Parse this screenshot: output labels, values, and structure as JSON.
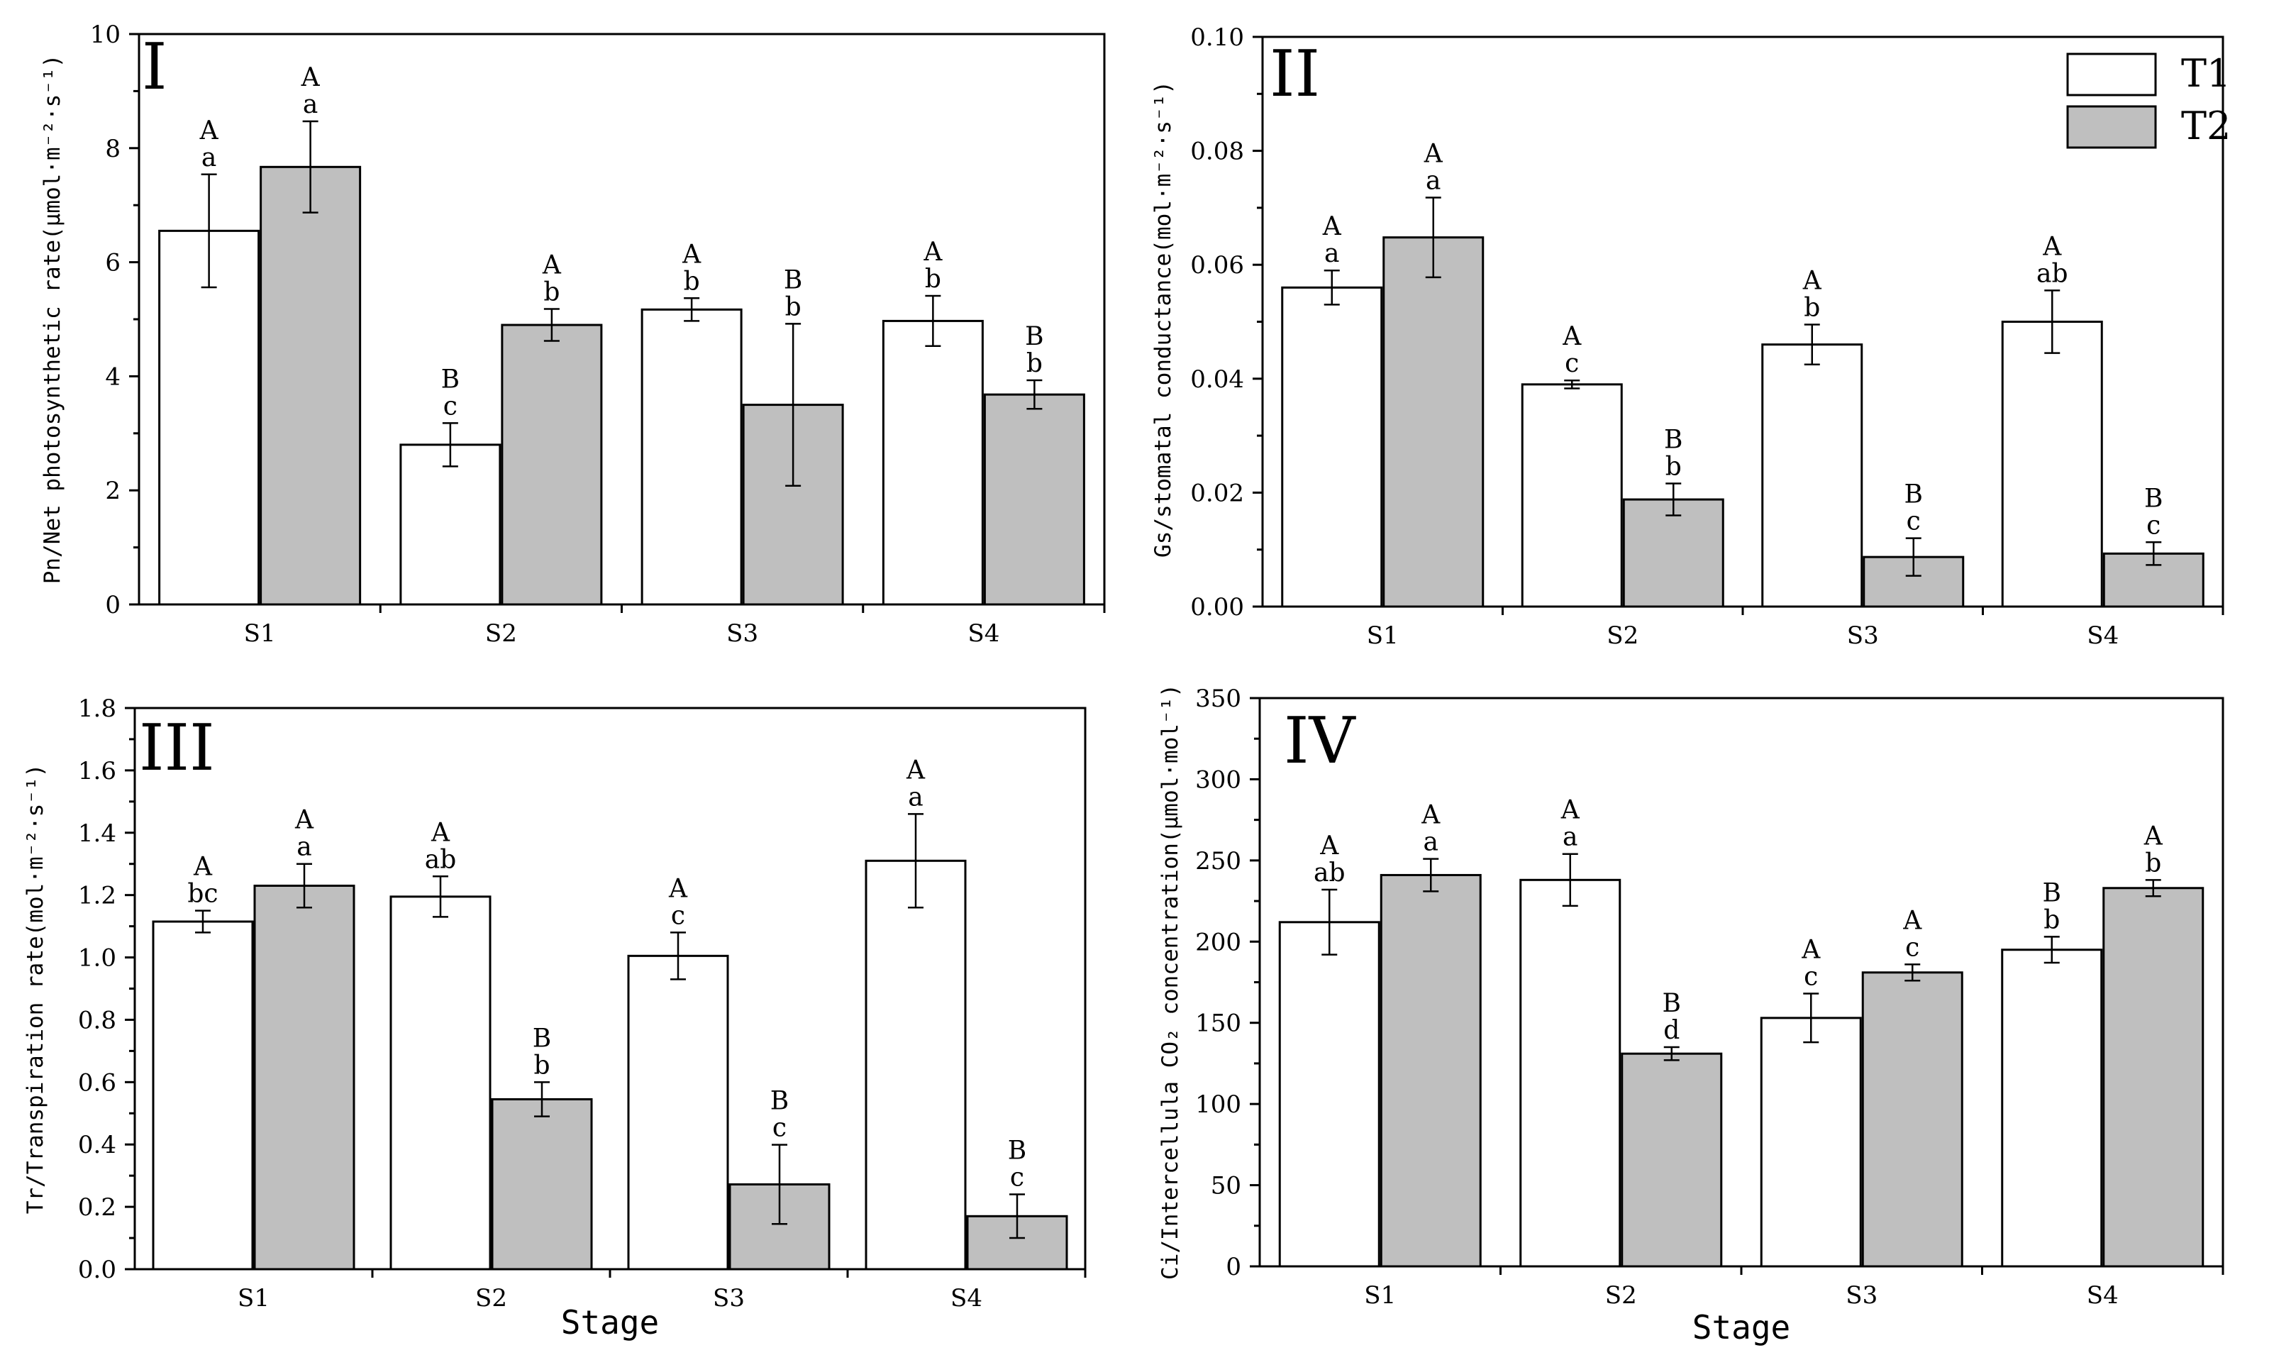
{
  "colors": {
    "T1": "#ffffff",
    "T2": "#bfbfbf",
    "axis": "#000000"
  },
  "legend": {
    "entries": [
      "T1",
      "T2"
    ]
  },
  "chart_data": [
    {
      "type": "bar",
      "panel": "I",
      "categories": [
        "S1",
        "S2",
        "S3",
        "S4"
      ],
      "series": [
        {
          "name": "T1",
          "values": [
            6.55,
            2.8,
            5.17,
            4.97
          ],
          "errors": [
            0.99,
            0.38,
            0.2,
            0.44
          ],
          "upper": [
            "A",
            "B",
            "A",
            "A"
          ],
          "lower": [
            "a",
            "c",
            "b",
            "b"
          ]
        },
        {
          "name": "T2",
          "values": [
            7.67,
            4.9,
            3.5,
            3.68
          ],
          "errors": [
            0.8,
            0.28,
            1.42,
            0.25
          ],
          "upper": [
            "A",
            "A",
            "B",
            "B"
          ],
          "lower": [
            "a",
            "b",
            "b",
            "b"
          ]
        }
      ],
      "xlabel": "",
      "ylabel": "Pn/Net photosynthetic rate(μmol·m⁻²·s⁻¹)",
      "ylim": [
        0,
        10
      ],
      "yticks": [
        0,
        2,
        4,
        6,
        8,
        10
      ],
      "ytick_labels": [
        "0",
        "2",
        "4",
        "6",
        "8",
        "10"
      ]
    },
    {
      "type": "bar",
      "panel": "II",
      "categories": [
        "S1",
        "S2",
        "S3",
        "S4"
      ],
      "series": [
        {
          "name": "T1",
          "values": [
            0.056,
            0.039,
            0.046,
            0.05
          ],
          "errors": [
            0.003,
            0.0007,
            0.0035,
            0.0055
          ],
          "upper": [
            "A",
            "A",
            "A",
            "A"
          ],
          "lower": [
            "a",
            "c",
            "b",
            "ab"
          ]
        },
        {
          "name": "T2",
          "values": [
            0.0648,
            0.0188,
            0.0087,
            0.0093
          ],
          "errors": [
            0.007,
            0.0028,
            0.0033,
            0.002
          ],
          "upper": [
            "A",
            "B",
            "B",
            "B"
          ],
          "lower": [
            "a",
            "b",
            "c",
            "c"
          ]
        }
      ],
      "xlabel": "",
      "ylabel": "Gs/stomatal conductance(mol·m⁻²·s⁻¹)",
      "ylim": [
        0,
        0.1
      ],
      "yticks": [
        0,
        0.02,
        0.04,
        0.06,
        0.08,
        0.1
      ],
      "ytick_labels": [
        "0.00",
        "0.02",
        "0.04",
        "0.06",
        "0.08",
        "0.10"
      ],
      "legend_position": "top-right"
    },
    {
      "type": "bar",
      "panel": "III",
      "categories": [
        "S1",
        "S2",
        "S3",
        "S4"
      ],
      "series": [
        {
          "name": "T1",
          "values": [
            1.115,
            1.195,
            1.005,
            1.31
          ],
          "errors": [
            0.035,
            0.065,
            0.075,
            0.15
          ],
          "upper": [
            "A",
            "A",
            "A",
            "A"
          ],
          "lower": [
            "bc",
            "ab",
            "c",
            "a"
          ]
        },
        {
          "name": "T2",
          "values": [
            1.23,
            0.545,
            0.272,
            0.17
          ],
          "errors": [
            0.07,
            0.055,
            0.127,
            0.07
          ],
          "upper": [
            "A",
            "B",
            "B",
            "B"
          ],
          "lower": [
            "a",
            "b",
            "c",
            "c"
          ]
        }
      ],
      "xlabel": "Stage",
      "ylabel": "Tr/Transpiration rate(mol·m⁻²·s⁻¹)",
      "ylim": [
        0,
        1.8
      ],
      "yticks": [
        0,
        0.2,
        0.4,
        0.6,
        0.8,
        1.0,
        1.2,
        1.4,
        1.6,
        1.8
      ],
      "ytick_labels": [
        "0.0",
        "0.2",
        "0.4",
        "0.6",
        "0.8",
        "1.0",
        "1.2",
        "1.4",
        "1.6",
        "1.8"
      ]
    },
    {
      "type": "bar",
      "panel": "IV",
      "categories": [
        "S1",
        "S2",
        "S3",
        "S4"
      ],
      "series": [
        {
          "name": "T1",
          "values": [
            212,
            238,
            153,
            195
          ],
          "errors": [
            20,
            16,
            15,
            8
          ],
          "upper": [
            "A",
            "A",
            "A",
            "B"
          ],
          "lower": [
            "ab",
            "a",
            "c",
            "b"
          ]
        },
        {
          "name": "T2",
          "values": [
            241,
            131,
            181,
            233
          ],
          "errors": [
            10,
            4,
            5,
            5
          ],
          "upper": [
            "A",
            "B",
            "A",
            "A"
          ],
          "lower": [
            "a",
            "d",
            "c",
            "b"
          ]
        }
      ],
      "xlabel": "Stage",
      "ylabel": "Ci/Intercellula CO₂ concentration(μmol·mol⁻¹)",
      "ylim": [
        0,
        350
      ],
      "yticks": [
        0,
        50,
        100,
        150,
        200,
        250,
        300,
        350
      ],
      "ytick_labels": [
        "0",
        "50",
        "100",
        "150",
        "200",
        "250",
        "300",
        "350"
      ]
    }
  ]
}
